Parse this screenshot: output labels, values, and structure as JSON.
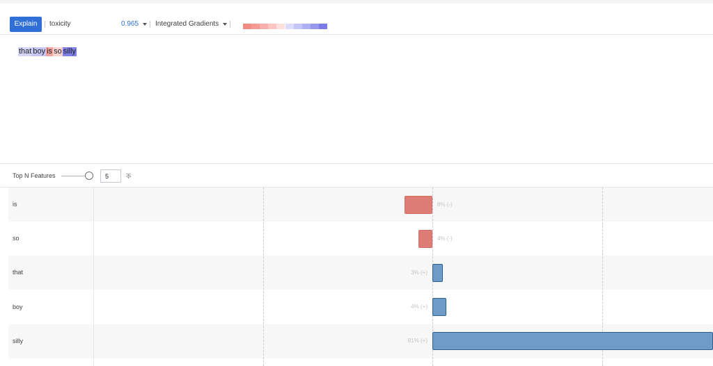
{
  "toolbar": {
    "explain_label": "Explain",
    "field_name": "toxicity",
    "score": "0.965",
    "method": "Integrated Gradients"
  },
  "legend": {
    "negative_colors": [
      "#f28b82",
      "#f59b95",
      "#f8aeaa",
      "#fbc6c3",
      "#fde0de"
    ],
    "positive_colors": [
      "#dcdcfb",
      "#c5c5f7",
      "#afaff3",
      "#9797ee",
      "#7b7be8"
    ]
  },
  "sentence": {
    "tokens": [
      {
        "text": "that",
        "color": "#d5d5f8"
      },
      {
        "text": "boy",
        "color": "#c6c6f4"
      },
      {
        "text": "is",
        "color": "#f3a29d"
      },
      {
        "text": "so",
        "color": "#f8d3d0"
      },
      {
        "text": "silly",
        "color": "#7f7fe6"
      }
    ]
  },
  "controls": {
    "top_n_label": "Top N Features",
    "top_n_value": "5",
    "sort_icon": "ক"
  },
  "features": [
    {
      "token": "is",
      "value": -0.08,
      "label": "8% (-)"
    },
    {
      "token": "so",
      "value": -0.04,
      "label": "4% (-)"
    },
    {
      "token": "that",
      "value": 0.03,
      "label": "3% (+)"
    },
    {
      "token": "boy",
      "value": 0.04,
      "label": "4% (+)"
    },
    {
      "token": "silly",
      "value": 0.81,
      "label": "81% (+)"
    }
  ],
  "axis": {
    "min": -1,
    "max": 1
  }
}
